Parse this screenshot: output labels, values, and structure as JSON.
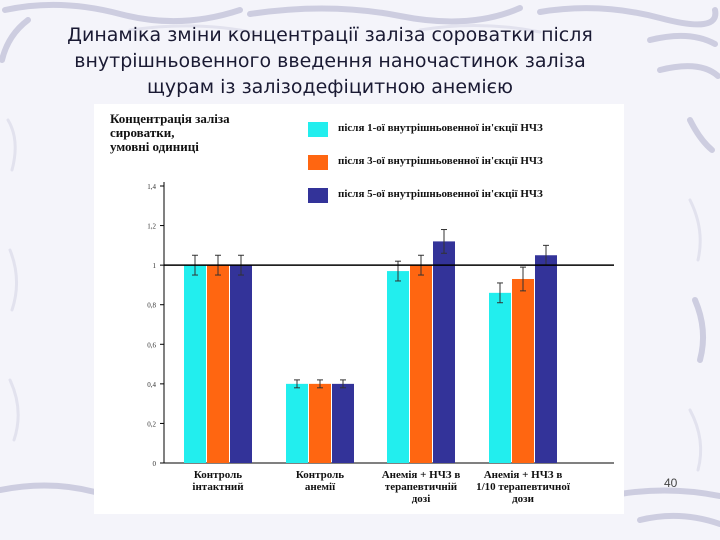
{
  "slide": {
    "title_lines": [
      "Динаміка зміни концентрації заліза сороватки після",
      "внутрішньовенного введення наночастинок заліза",
      "щурам із залізодефіцитною анемією"
    ],
    "page_number": "40"
  },
  "chart_data": {
    "type": "bar",
    "ylabel_lines": [
      "Концентрація заліза",
      "сироватки,",
      "умовні одиниці"
    ],
    "categories": [
      [
        "Контроль",
        "інтактний"
      ],
      [
        "Контроль",
        "анемії"
      ],
      [
        "Анемія + НЧЗ в",
        "терапевтичній",
        "дозі"
      ],
      [
        "Анемія + НЧЗ в",
        "1/10 терапевтичної",
        "дози"
      ]
    ],
    "series": [
      {
        "name": "після 1-ої внутрішньовенної ін'єкції НЧЗ",
        "color": "#22eeee",
        "values": [
          1.0,
          0.4,
          0.97,
          0.86
        ],
        "errors": [
          0.05,
          0.02,
          0.05,
          0.05
        ]
      },
      {
        "name": "після 3-ої внутрішньовенної ін'єкції НЧЗ",
        "color": "#ff6611",
        "values": [
          1.0,
          0.4,
          1.0,
          0.93
        ],
        "errors": [
          0.05,
          0.02,
          0.05,
          0.06
        ]
      },
      {
        "name": "після 5-ої внутрішньовенної ін'єкції НЧЗ",
        "color": "#333399",
        "values": [
          1.0,
          0.4,
          1.12,
          1.05
        ],
        "errors": [
          0.05,
          0.02,
          0.06,
          0.05
        ]
      }
    ],
    "yticks": [
      "0",
      "0,2",
      "0,4",
      "0,6",
      "0,8",
      "1",
      "1,2",
      "1,4"
    ],
    "ylim": [
      0,
      1.4
    ],
    "reference_line": 1,
    "grid": false,
    "legend_position": "top-right"
  }
}
